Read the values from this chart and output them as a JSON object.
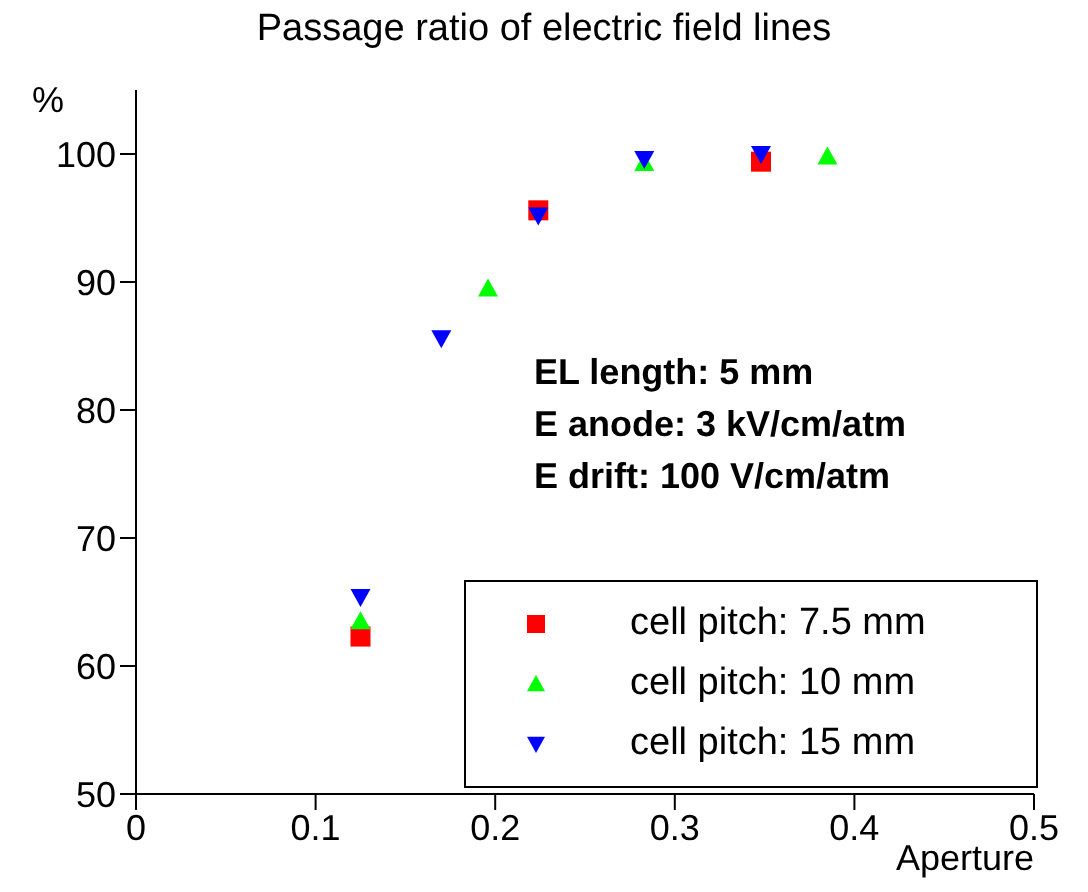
{
  "chart_data": {
    "type": "scatter",
    "title": "Passage ratio of electric field lines",
    "xlabel": "Aperture",
    "ylabel": "%",
    "xlim": [
      0,
      0.5
    ],
    "xticks": [
      0,
      0.1,
      0.2,
      0.3,
      0.4,
      0.5
    ],
    "ylim": [
      50,
      105
    ],
    "yticks": [
      50,
      60,
      70,
      80,
      90,
      100
    ],
    "grid": false,
    "legend": "bottom right",
    "annotations": [
      "EL length: 5 mm",
      "E anode: 3 kV/cm/atm",
      "E drift: 100 V/cm/atm"
    ],
    "series": [
      {
        "name": "cell pitch: 7.5 mm",
        "color": "#ff0000",
        "marker": "square",
        "x": [
          0.125,
          0.224,
          0.348
        ],
        "values": [
          62.3,
          95.6,
          99.4
        ]
      },
      {
        "name": "cell pitch: 10 mm",
        "color": "#00ff00",
        "marker": "triangle",
        "x": [
          0.125,
          0.196,
          0.283,
          0.385
        ],
        "values": [
          63.5,
          89.5,
          99.3,
          99.8
        ]
      },
      {
        "name": "cell pitch: 15 mm",
        "color": "#0000ff",
        "marker": "triangle-down",
        "x": [
          0.125,
          0.17,
          0.224,
          0.283,
          0.348
        ],
        "values": [
          65.4,
          85.6,
          95.2,
          99.6,
          100
        ]
      }
    ]
  }
}
